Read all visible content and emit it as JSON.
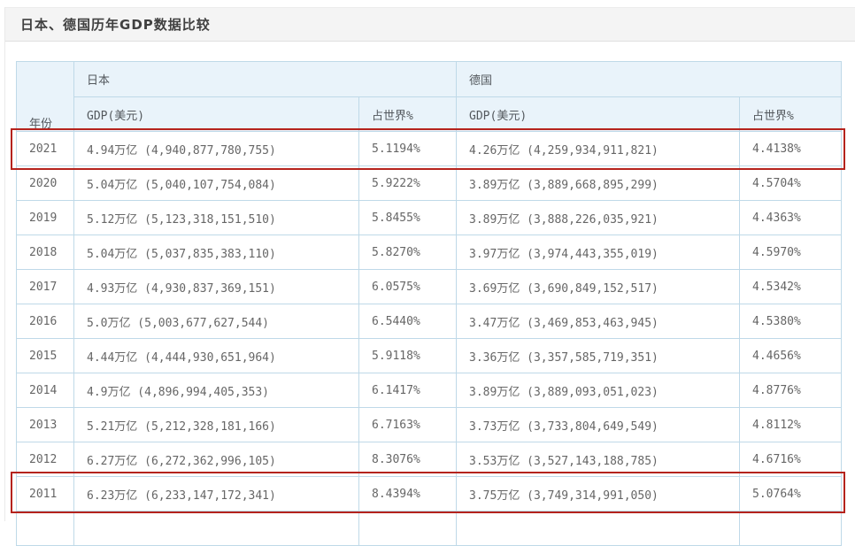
{
  "page": {
    "title": "日本、德国历年GDP数据比较"
  },
  "table": {
    "header": {
      "year": "年份",
      "japan": "日本",
      "germany": "德国",
      "gdp": "GDP(美元)",
      "world_share": "占世界%"
    },
    "rows": [
      {
        "year": "2021",
        "jp_gdp": "4.94万亿 (4,940,877,780,755)",
        "jp_share": "5.1194%",
        "de_gdp": "4.26万亿 (4,259,934,911,821)",
        "de_share": "4.4138%",
        "highlighted": true
      },
      {
        "year": "2020",
        "jp_gdp": "5.04万亿 (5,040,107,754,084)",
        "jp_share": "5.9222%",
        "de_gdp": "3.89万亿 (3,889,668,895,299)",
        "de_share": "4.5704%",
        "highlighted": false
      },
      {
        "year": "2019",
        "jp_gdp": "5.12万亿 (5,123,318,151,510)",
        "jp_share": "5.8455%",
        "de_gdp": "3.89万亿 (3,888,226,035,921)",
        "de_share": "4.4363%",
        "highlighted": false
      },
      {
        "year": "2018",
        "jp_gdp": "5.04万亿 (5,037,835,383,110)",
        "jp_share": "5.8270%",
        "de_gdp": "3.97万亿 (3,974,443,355,019)",
        "de_share": "4.5970%",
        "highlighted": false
      },
      {
        "year": "2017",
        "jp_gdp": "4.93万亿 (4,930,837,369,151)",
        "jp_share": "6.0575%",
        "de_gdp": "3.69万亿 (3,690,849,152,517)",
        "de_share": "4.5342%",
        "highlighted": false
      },
      {
        "year": "2016",
        "jp_gdp": "5.0万亿 (5,003,677,627,544)",
        "jp_share": "6.5440%",
        "de_gdp": "3.47万亿 (3,469,853,463,945)",
        "de_share": "4.5380%",
        "highlighted": false
      },
      {
        "year": "2015",
        "jp_gdp": "4.44万亿 (4,444,930,651,964)",
        "jp_share": "5.9118%",
        "de_gdp": "3.36万亿 (3,357,585,719,351)",
        "de_share": "4.4656%",
        "highlighted": false
      },
      {
        "year": "2014",
        "jp_gdp": "4.9万亿 (4,896,994,405,353)",
        "jp_share": "6.1417%",
        "de_gdp": "3.89万亿 (3,889,093,051,023)",
        "de_share": "4.8776%",
        "highlighted": false
      },
      {
        "year": "2013",
        "jp_gdp": "5.21万亿 (5,212,328,181,166)",
        "jp_share": "6.7163%",
        "de_gdp": "3.73万亿 (3,733,804,649,549)",
        "de_share": "4.8112%",
        "highlighted": false
      },
      {
        "year": "2012",
        "jp_gdp": "6.27万亿 (6,272,362,996,105)",
        "jp_share": "8.3076%",
        "de_gdp": "3.53万亿 (3,527,143,188,785)",
        "de_share": "4.6716%",
        "highlighted": false
      },
      {
        "year": "2011",
        "jp_gdp": "6.23万亿 (6,233,147,172,341)",
        "jp_share": "8.4394%",
        "de_gdp": "3.75万亿 (3,749,314,991,050)",
        "de_share": "5.0764%",
        "highlighted": true
      }
    ]
  },
  "colors": {
    "highlight_border": "#b5231d",
    "table_border": "#bfd9e8",
    "header_bg": "#e9f3fa",
    "title_bar_bg": "#f4f4f4"
  }
}
